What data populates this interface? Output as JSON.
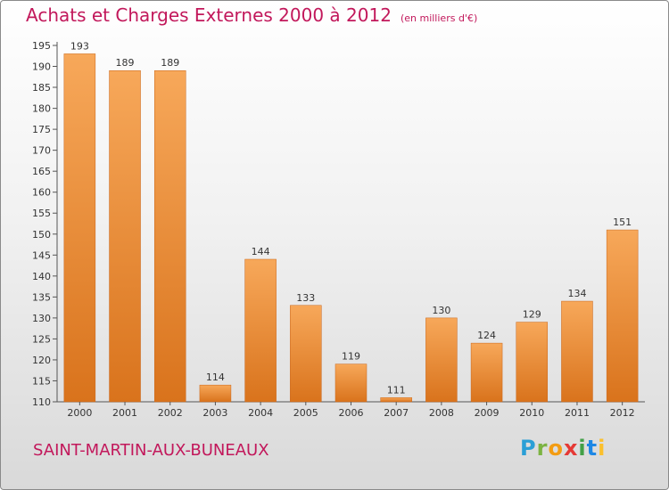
{
  "header": {
    "title": "Achats et Charges Externes 2000 à 2012",
    "subtitle": "(en milliers d'€)"
  },
  "footer": {
    "town": "SAINT-MARTIN-AUX-BUNEAUX",
    "logo": "Proxiti"
  },
  "colors": {
    "accent": "#c2185b",
    "bar_light": "#f7a85a",
    "bar_dark": "#d9731c"
  },
  "chart_data": {
    "type": "bar",
    "categories": [
      "2000",
      "2001",
      "2002",
      "2003",
      "2004",
      "2005",
      "2006",
      "2007",
      "2008",
      "2009",
      "2010",
      "2011",
      "2012"
    ],
    "values": [
      193,
      189,
      189,
      114,
      144,
      133,
      119,
      111,
      130,
      124,
      129,
      134,
      151
    ],
    "ylim": [
      110,
      195
    ],
    "yticks": [
      110,
      115,
      120,
      125,
      130,
      135,
      140,
      145,
      150,
      155,
      160,
      165,
      170,
      175,
      180,
      185,
      190,
      195
    ],
    "grid": false,
    "title": "Achats et Charges Externes 2000 à 2012",
    "xlabel": "",
    "ylabel": ""
  }
}
